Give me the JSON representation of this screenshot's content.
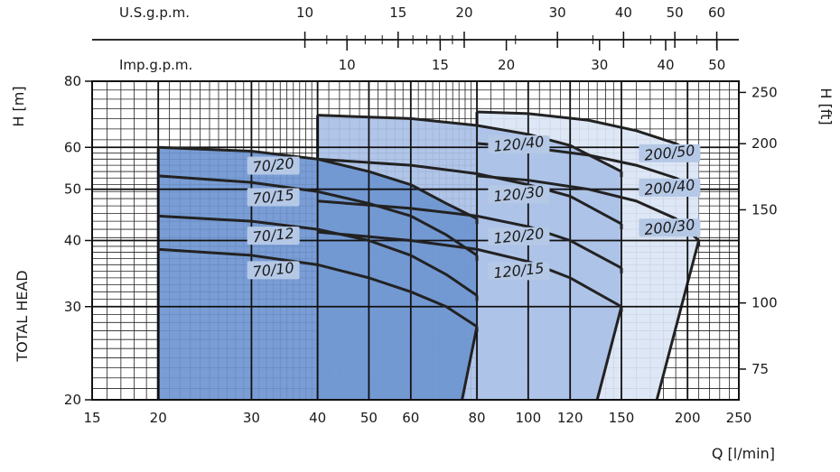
{
  "chart_data": {
    "type": "line",
    "title": "",
    "xlabel": "Q [l/min]",
    "ylabel": "TOTAL HEAD",
    "ylabel_units": "H [m]",
    "y2label": "H [ft]",
    "xscale": "log",
    "yscale": "log",
    "xlim": [
      15,
      250
    ],
    "ylim": [
      20,
      80
    ],
    "x_ticks": [
      15,
      20,
      30,
      40,
      50,
      60,
      80,
      100,
      120,
      150,
      200,
      250
    ],
    "y_ticks": [
      20,
      30,
      40,
      50,
      60,
      80
    ],
    "y2_ticks": [
      75,
      100,
      150,
      200,
      250
    ],
    "top_axes": [
      {
        "label": "U.S.g.p.m.",
        "ticks": [
          10,
          15,
          20,
          30,
          40,
          50,
          60
        ]
      },
      {
        "label": "Imp.g.p.m.",
        "ticks": [
          10,
          15,
          20,
          30,
          40,
          50
        ]
      }
    ],
    "grid": true,
    "series": [
      {
        "name": "70/20",
        "family": "70",
        "x": [
          20,
          30,
          40,
          50,
          60,
          70,
          80
        ],
        "y": [
          60,
          59,
          57,
          54,
          51,
          47,
          44
        ]
      },
      {
        "name": "70/15",
        "family": "70",
        "x": [
          20,
          30,
          40,
          50,
          60,
          70,
          80
        ],
        "y": [
          53,
          51.5,
          49.5,
          47,
          44.5,
          41,
          37.5
        ]
      },
      {
        "name": "70/12",
        "family": "70",
        "x": [
          20,
          30,
          40,
          50,
          60,
          70,
          80
        ],
        "y": [
          44.5,
          43.5,
          42,
          40,
          37.5,
          34.5,
          31.5
        ]
      },
      {
        "name": "70/10",
        "family": "70",
        "x": [
          20,
          30,
          40,
          50,
          60,
          70,
          80
        ],
        "y": [
          38.5,
          37.5,
          36,
          34,
          32,
          30,
          27.5
        ]
      },
      {
        "name": "120/40",
        "family": "120",
        "x": [
          40,
          60,
          80,
          100,
          120,
          150
        ],
        "y": [
          69,
          68,
          66,
          63.5,
          60.5,
          54
        ]
      },
      {
        "name": "120/30",
        "family": "120",
        "x": [
          40,
          60,
          80,
          100,
          120,
          150
        ],
        "y": [
          57,
          55.5,
          53.5,
          51,
          48.5,
          43
        ]
      },
      {
        "name": "120/20",
        "family": "120",
        "x": [
          40,
          60,
          80,
          100,
          120,
          150
        ],
        "y": [
          47.5,
          46,
          44.5,
          42.5,
          40,
          35.5
        ]
      },
      {
        "name": "120/15",
        "family": "120",
        "x": [
          40,
          60,
          80,
          100,
          120,
          150
        ],
        "y": [
          41.5,
          40,
          38.5,
          36.5,
          34,
          30
        ]
      },
      {
        "name": "200/50",
        "family": "200",
        "x": [
          80,
          100,
          130,
          160,
          190,
          210
        ],
        "y": [
          70,
          69.5,
          67.5,
          64.5,
          61,
          58
        ]
      },
      {
        "name": "200/40",
        "family": "200",
        "x": [
          80,
          100,
          130,
          160,
          190,
          210
        ],
        "y": [
          61,
          60,
          58,
          55.5,
          52.5,
          50
        ]
      },
      {
        "name": "200/30",
        "family": "200",
        "x": [
          80,
          100,
          130,
          160,
          190,
          210
        ],
        "y": [
          53,
          52,
          50,
          47.5,
          44,
          40
        ]
      }
    ],
    "envelopes": [
      {
        "family": "70",
        "color": "#6e95d0",
        "top_curve": "70/20",
        "bottom_left_x": 20,
        "bottom_right_x": 75,
        "right_edge_end_y": 27.5
      },
      {
        "family": "120",
        "color": "#a9c0e6",
        "top_curve": "120/40",
        "bottom_left_x": 40,
        "bottom_right_x": 135,
        "right_edge_end_y": 30
      },
      {
        "family": "200",
        "color": "#dbe5f5",
        "top_curve": "200/50",
        "bottom_left_x": 80,
        "bottom_right_x": 175,
        "right_edge_end_y": 40
      }
    ],
    "label_color": "#b5c8e6",
    "line_color": "#222222"
  }
}
